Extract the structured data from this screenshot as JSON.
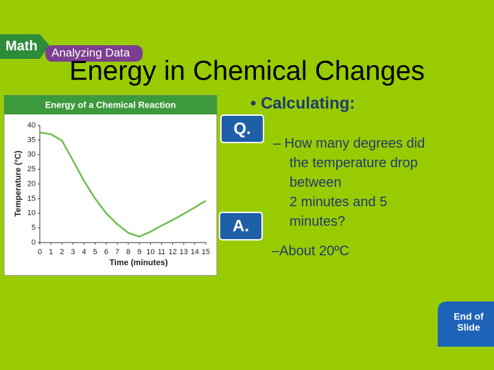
{
  "header": {
    "badge": "Math",
    "tag": "Analyzing Data"
  },
  "title": "Energy in Chemical Changes",
  "bullet": "• Calculating:",
  "question": {
    "label": "Q.",
    "lines": [
      "– How many degrees did",
      "the temperature drop",
      "between",
      "2 minutes and 5",
      "minutes?"
    ]
  },
  "answer": {
    "label": "A.",
    "text": "–About 20ºC"
  },
  "button": {
    "lines": [
      "End of",
      "Slide"
    ]
  },
  "chart_data": {
    "type": "line",
    "title": "Energy of a Chemical Reaction",
    "x_label": "Time (minutes)",
    "y_label": "Temperature (°C)",
    "x": [
      0,
      1,
      2,
      3,
      4,
      5,
      6,
      7,
      8,
      9,
      10,
      11,
      12,
      13,
      14,
      15
    ],
    "values": [
      37.6,
      37,
      34.8,
      28,
      21,
      15,
      10,
      6.3,
      3.3,
      2,
      3.7,
      5.8,
      7.7,
      9.8,
      12,
      14.3
    ],
    "color": "#6cbf4a",
    "xlim": [
      0,
      15
    ],
    "xticks": [
      0,
      1,
      2,
      3,
      4,
      5,
      6,
      7,
      8,
      9,
      10,
      11,
      12,
      13,
      14,
      15
    ],
    "ylim": [
      0,
      40
    ],
    "yticks": [
      0,
      5,
      10,
      15,
      20,
      25,
      30,
      35,
      40
    ],
    "grid": false
  }
}
